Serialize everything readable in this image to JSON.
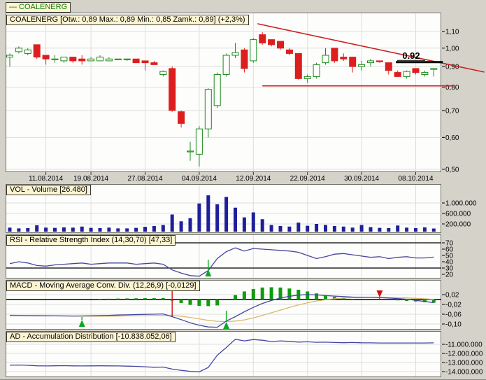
{
  "legend": {
    "text": "— COALENERG"
  },
  "info_bar": {
    "text": "COALENERG [Otw.: 0,89  Max.: 0,89  Min.: 0,85  Zamk.: 0,89] (+2,3%)"
  },
  "panels": {
    "volume_label": "VOL - Volume [26.480]",
    "rsi_label": "RSI - Relative Strength Index (14,30,70) [47,33]",
    "macd_label": "MACD - Moving Average Conv. Div. (12,26,9) [-0,0129]",
    "ad_label": "AD - Accumulation Distribution [-10.838.052,06]"
  },
  "colors": {
    "candle_up": "#1d8a1d",
    "candle_down": "#dd1e1e",
    "trendline": "#cc2222",
    "resistance": "#000000",
    "volume_bar": "#1f1f9c",
    "indicator_line": "#4646a0",
    "macd_signal": "#d8b96b",
    "macd_hist": "#0f9b0f",
    "grid": "#dcdee0",
    "marker_up": "#0baa22",
    "marker_down": "#cc1111"
  },
  "chart_data": [
    {
      "type": "candlestick",
      "panel": "price",
      "dates": [
        "05.08.2014",
        "06.08.2014",
        "07.08.2014",
        "08.08.2014",
        "11.08.2014",
        "12.08.2014",
        "13.08.2014",
        "14.08.2014",
        "18.08.2014",
        "19.08.2014",
        "20.08.2014",
        "21.08.2014",
        "22.08.2014",
        "25.08.2014",
        "26.08.2014",
        "27.08.2014",
        "28.08.2014",
        "29.08.2014",
        "01.09.2014",
        "02.09.2014",
        "03.09.2014",
        "04.09.2014",
        "05.09.2014",
        "08.09.2014",
        "09.09.2014",
        "10.09.2014",
        "11.09.2014",
        "12.09.2014",
        "15.09.2014",
        "16.09.2014",
        "17.09.2014",
        "18.09.2014",
        "19.09.2014",
        "22.09.2014",
        "23.09.2014",
        "24.09.2014",
        "25.09.2014",
        "26.09.2014",
        "29.09.2014",
        "30.09.2014",
        "01.10.2014",
        "02.10.2014",
        "03.10.2014",
        "06.10.2014",
        "07.10.2014",
        "08.10.2014",
        "09.10.2014",
        "10.10.2014"
      ],
      "open": [
        0.95,
        0.98,
        0.97,
        1.02,
        0.96,
        0.94,
        0.93,
        0.95,
        0.94,
        0.93,
        0.93,
        0.93,
        0.94,
        0.94,
        0.94,
        0.93,
        0.92,
        0.86,
        0.89,
        0.695,
        0.555,
        0.545,
        0.63,
        0.72,
        0.86,
        0.96,
        0.99,
        0.93,
        1.08,
        1.05,
        1.04,
        0.99,
        0.97,
        0.84,
        0.85,
        0.92,
        1.0,
        0.95,
        0.95,
        0.9,
        0.92,
        0.93,
        0.92,
        0.87,
        0.85,
        0.89,
        0.86,
        0.89
      ],
      "high": [
        0.97,
        1.01,
        1.0,
        1.02,
        0.96,
        0.96,
        0.95,
        0.95,
        0.96,
        0.95,
        0.96,
        0.95,
        0.94,
        0.94,
        0.94,
        0.93,
        0.93,
        0.88,
        0.9,
        0.7,
        0.585,
        0.64,
        0.795,
        0.87,
        0.97,
        1.03,
        1.0,
        1.06,
        1.095,
        1.05,
        1.04,
        1.0,
        0.97,
        0.86,
        0.92,
        1.0,
        1.0,
        0.97,
        0.95,
        0.93,
        0.94,
        0.93,
        0.92,
        0.88,
        0.88,
        0.89,
        0.88,
        0.89
      ],
      "low": [
        0.9,
        0.97,
        0.96,
        0.94,
        0.91,
        0.92,
        0.92,
        0.92,
        0.91,
        0.93,
        0.93,
        0.93,
        0.94,
        0.93,
        0.92,
        0.88,
        0.91,
        0.85,
        0.695,
        0.635,
        0.525,
        0.508,
        0.6,
        0.71,
        0.85,
        0.945,
        0.87,
        0.92,
        1.02,
        1.01,
        0.99,
        0.96,
        0.835,
        0.82,
        0.84,
        0.91,
        0.92,
        0.93,
        0.87,
        0.88,
        0.9,
        0.92,
        0.86,
        0.85,
        0.84,
        0.86,
        0.85,
        0.85
      ],
      "close": [
        0.96,
        1.0,
        0.99,
        0.95,
        0.94,
        0.94,
        0.95,
        0.93,
        0.93,
        0.94,
        0.95,
        0.94,
        0.94,
        0.94,
        0.92,
        0.92,
        0.91,
        0.875,
        0.7,
        0.65,
        0.555,
        0.63,
        0.79,
        0.86,
        0.96,
        0.975,
        0.89,
        1.05,
        1.03,
        1.02,
        1.0,
        0.97,
        0.84,
        0.85,
        0.91,
        0.96,
        0.93,
        0.94,
        0.9,
        0.91,
        0.93,
        0.925,
        0.88,
        0.85,
        0.875,
        0.87,
        0.87,
        0.89
      ],
      "x_tick_labels": [
        "11.08.2014",
        "19.08.2014",
        "27.08.2014",
        "04.09.2014",
        "12.09.2014",
        "22.09.2014",
        "30.09.2014",
        "08.10.2014"
      ],
      "x_tick_indices": [
        4,
        9,
        15,
        21,
        27,
        33,
        39,
        45
      ],
      "y_tick_labels": [
        "1,10",
        "1,00",
        "0,90",
        "0,80",
        "0,70",
        "0,60",
        "0,50"
      ],
      "y_tick_values": [
        1.1,
        1.0,
        0.9,
        0.8,
        0.7,
        0.6,
        0.5
      ],
      "y_scale": "log",
      "ylim": [
        0.5,
        1.13
      ],
      "annotations": {
        "trendline_upper": {
          "day_from": 27.45,
          "price_from": 1.15,
          "day_to": 52.6,
          "price_to": 0.872
        },
        "trendline_lower": {
          "day_from": 28.0,
          "day_to": 49.2,
          "price": 0.806
        },
        "resistance": {
          "day_from": 42.8,
          "day_to": 48.0,
          "price": 0.923,
          "label": "0.92"
        }
      }
    },
    {
      "type": "bar",
      "panel": "volume",
      "values_thousands": [
        60,
        30,
        40,
        150,
        60,
        50,
        70,
        60,
        100,
        50,
        40,
        60,
        30,
        30,
        50,
        90,
        120,
        160,
        560,
        300,
        420,
        980,
        1290,
        950,
        1230,
        820,
        450,
        640,
        380,
        160,
        120,
        100,
        250,
        130,
        200,
        160,
        120,
        100,
        60,
        160,
        80,
        50,
        40,
        140,
        60,
        40,
        70,
        26
      ],
      "y_tick_labels": [
        "1.000.000",
        "600.000",
        "200.000"
      ],
      "y_tick_values": [
        1000,
        600,
        200
      ]
    },
    {
      "type": "line",
      "panel": "rsi",
      "values": [
        37,
        40,
        38,
        34,
        33,
        35,
        36,
        37,
        38,
        36,
        37,
        38,
        38,
        38,
        36,
        37,
        38,
        36,
        27,
        22,
        18,
        17,
        26,
        45,
        56,
        62,
        57,
        61,
        60,
        59,
        58,
        57,
        55,
        50,
        45,
        48,
        52,
        53,
        51,
        49,
        47,
        48,
        45,
        47,
        48,
        46,
        46,
        47.33
      ],
      "y_tick_labels": [
        "70",
        "60",
        "50",
        "40",
        "30",
        "20"
      ],
      "y_tick_values": [
        70,
        60,
        50,
        40,
        30,
        20
      ],
      "hlines": [
        70,
        30
      ],
      "markers": [
        {
          "i": 22,
          "dir": "up",
          "tip": 385,
          "stem_to": 371
        }
      ]
    },
    {
      "type": "macd",
      "panel": "macd",
      "macd": [
        -0.0655,
        -0.0655,
        -0.066,
        -0.0665,
        -0.0665,
        -0.067,
        -0.0672,
        -0.0675,
        -0.0672,
        -0.0665,
        -0.0655,
        -0.0645,
        -0.0635,
        -0.0625,
        -0.0615,
        -0.0605,
        -0.06,
        -0.059,
        -0.07,
        -0.082,
        -0.095,
        -0.105,
        -0.112,
        -0.113,
        -0.088,
        -0.07,
        -0.05,
        -0.032,
        -0.016,
        -0.004,
        0.006,
        0.013,
        0.018,
        0.02,
        0.019,
        0.016,
        0.014,
        0.012,
        0.01,
        0.009,
        0.009,
        0.008,
        0.006,
        0.004,
        0.001,
        -0.003,
        -0.008,
        -0.0129
      ],
      "signal": [
        -0.064,
        -0.0645,
        -0.065,
        -0.0655,
        -0.066,
        -0.0665,
        -0.067,
        -0.0675,
        -0.0678,
        -0.068,
        -0.068,
        -0.0678,
        -0.0675,
        -0.067,
        -0.0665,
        -0.066,
        -0.0655,
        -0.065,
        -0.0655,
        -0.068,
        -0.073,
        -0.079,
        -0.085,
        -0.089,
        -0.09,
        -0.088,
        -0.083,
        -0.075,
        -0.065,
        -0.054,
        -0.043,
        -0.032,
        -0.022,
        -0.013,
        -0.006,
        -0.001,
        0.003,
        0.006,
        0.0075,
        0.008,
        0.0085,
        0.0086,
        0.008,
        0.0075,
        0.0065,
        0.005,
        0.003,
        0.0
      ],
      "y_tick_labels": [
        "0,02",
        "-0,02",
        "-0,06",
        "-0,10"
      ],
      "y_tick_values": [
        0.02,
        -0.02,
        -0.06,
        -0.1
      ],
      "markers": [
        {
          "i": 8,
          "dir": "up",
          "tip": 457,
          "stem_to": 453
        },
        {
          "i": 18,
          "dir": "down",
          "tip": 413,
          "stem_to": 452
        },
        {
          "i": 24,
          "dir": "up",
          "tip": 460,
          "stem_to": 444
        },
        {
          "i": 41,
          "dir": "down",
          "tip": 425,
          "stem_to": 428
        }
      ]
    },
    {
      "type": "line",
      "panel": "ad",
      "values_millions": [
        -13.3,
        -13.28,
        -13.31,
        -13.36,
        -13.38,
        -13.36,
        -13.35,
        -13.37,
        -13.38,
        -13.37,
        -13.36,
        -13.37,
        -13.38,
        -13.4,
        -13.42,
        -13.47,
        -13.52,
        -13.5,
        -13.72,
        -13.86,
        -13.97,
        -14.02,
        -13.55,
        -12.2,
        -11.35,
        -10.45,
        -10.62,
        -10.48,
        -10.55,
        -10.7,
        -10.62,
        -10.68,
        -10.75,
        -10.72,
        -10.78,
        -10.76,
        -10.8,
        -10.82,
        -10.8,
        -10.83,
        -10.84,
        -10.85,
        -10.85,
        -10.85,
        -10.85,
        -10.85,
        -10.85,
        -10.838
      ],
      "y_tick_labels": [
        "-11.000.000",
        "-12.000.000",
        "-13.000.000",
        "-14.000.000"
      ],
      "y_tick_values": [
        -11,
        -12,
        -13,
        -14
      ]
    }
  ]
}
